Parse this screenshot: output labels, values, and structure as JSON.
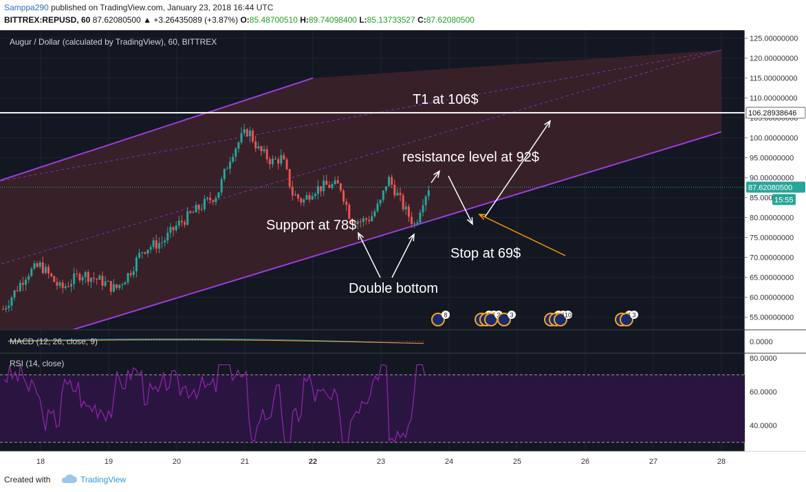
{
  "header": {
    "author": "Samppa290",
    "published": "published on TradingView.com, January 23, 2018 16:44 UTC",
    "symbol": "BITTREX:REPUSD, 60",
    "last": "87.62080500",
    "change": "▲ +3.26435089 (+3.87%)",
    "o_label": "O:",
    "o": "85.48700510",
    "h_label": "H:",
    "h": "89.74098400",
    "l_label": "L:",
    "l": "85.13733527",
    "c_label": "C:",
    "c": "87.62080500"
  },
  "chart_title": "Augur / Dollar (calculated by TradingView), 60, BITTREX",
  "price_axis": {
    "labels": [
      "125.00000000",
      "120.00000000",
      "115.00000000",
      "110.00000000",
      "105.00000000",
      "100.00000000",
      "95.00000000",
      "90.00000000",
      "85.00000000",
      "80.00000000",
      "75.00000000",
      "70.00000000",
      "65.00000000",
      "60.00000000",
      "55.00000000"
    ],
    "last_price_tag": "87.62080500",
    "countdown_tag": "15:55",
    "target_tag": "106.28938646"
  },
  "x_axis": {
    "labels": [
      "18",
      "19",
      "20",
      "21",
      "22",
      "23",
      "24",
      "25",
      "26",
      "27",
      "28"
    ]
  },
  "annotations": {
    "t1": "T1 at 106$",
    "resistance": "resistance level at 92$",
    "support": "Support at 78$",
    "stop": "Stop at 69$",
    "double_bottom": "Double bottom"
  },
  "events": [
    {
      "count": "8"
    },
    {
      "count": "5"
    },
    {
      "count": "3"
    },
    {
      "count": "3"
    },
    {
      "count": "3"
    },
    {
      "count": "2"
    },
    {
      "count": "1"
    },
    {
      "count": "10"
    },
    {
      "count": "2"
    },
    {
      "count": "3"
    }
  ],
  "macd": {
    "label": "MACD (12, 26, close, 9)",
    "axis": "0.0000"
  },
  "rsi": {
    "label": "RSI (14, close)",
    "axis": [
      "80.0000",
      "60.0000",
      "40.0000"
    ]
  },
  "colors": {
    "background": "#131722",
    "channel": "#9c3ee0",
    "channel_fill": "#3a2129",
    "up": "#26a69a",
    "down": "#ef5350",
    "rsi": "#8e24aa",
    "rsi_band": "#2a1540",
    "text": "#ffffff",
    "stop_arrow": "#ff9800"
  },
  "chart_data": {
    "type": "candlestick",
    "title": "Augur / Dollar (calculated by TradingView), 60, BITTREX",
    "ylim": [
      52,
      127
    ],
    "x_range": [
      "17",
      "28"
    ],
    "anchors": [
      [
        "17.45",
        57
      ],
      [
        "17.8",
        66
      ],
      [
        "18",
        68
      ],
      [
        "18.3",
        62
      ],
      [
        "18.6",
        66
      ],
      [
        "18.9",
        64
      ],
      [
        "19.1",
        62
      ],
      [
        "19.3",
        66
      ],
      [
        "19.5",
        72
      ],
      [
        "19.8",
        74
      ],
      [
        "20",
        78
      ],
      [
        "20.3",
        82
      ],
      [
        "20.6",
        86
      ],
      [
        "20.8",
        96
      ],
      [
        "20.95",
        100
      ],
      [
        "21.05",
        102
      ],
      [
        "21.2",
        97
      ],
      [
        "21.4",
        94
      ],
      [
        "21.55",
        95
      ],
      [
        "21.7",
        86
      ],
      [
        "21.85",
        84
      ],
      [
        "22",
        87
      ],
      [
        "22.2",
        88
      ],
      [
        "22.4",
        88
      ],
      [
        "22.55",
        80
      ],
      [
        "22.7",
        79
      ],
      [
        "22.85",
        80
      ],
      [
        "23",
        84
      ],
      [
        "23.1",
        90
      ],
      [
        "23.2",
        87
      ],
      [
        "23.35",
        82
      ],
      [
        "23.5",
        78
      ],
      [
        "23.6",
        84
      ],
      [
        "23.7",
        87.6
      ]
    ],
    "horizontal_lines": [
      106.29
    ],
    "last_price": 87.6208,
    "trend_channel": {
      "upper": [
        [
          "17.35",
          89
        ],
        [
          "22",
          115
        ],
        [
          "28",
          122
        ]
      ],
      "middle": [
        [
          "17.35",
          68
        ],
        [
          "28",
          122
        ]
      ],
      "lower": [
        [
          "17.35",
          46
        ],
        [
          "28",
          101.5
        ]
      ]
    },
    "rsi_levels": [
      70,
      30
    ],
    "rsi_ylim": [
      25,
      82
    ]
  }
}
